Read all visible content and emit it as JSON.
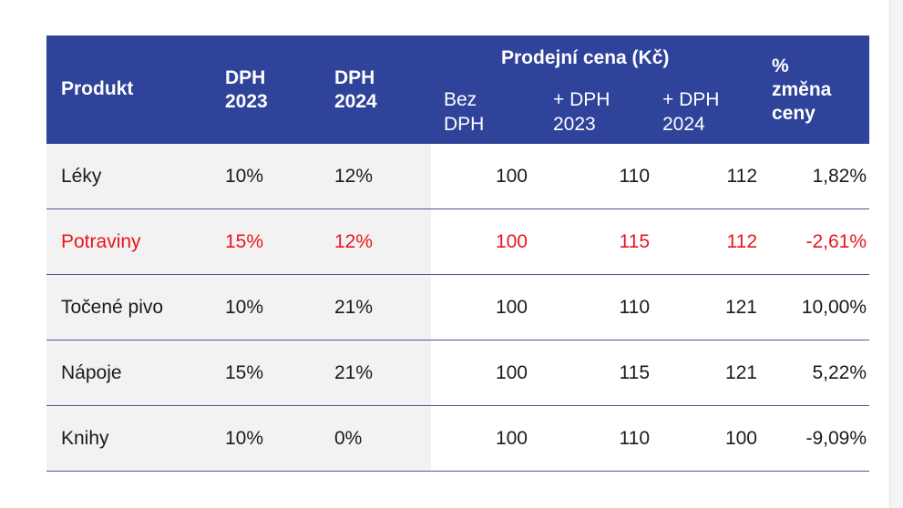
{
  "header": {
    "product": "Produkt",
    "vat2023": [
      "DPH",
      "2023"
    ],
    "vat2024": [
      "DPH",
      "2024"
    ],
    "price_group": "Prodejní cena (Kč)",
    "price_excl": [
      "Bez",
      "DPH"
    ],
    "price_2023": [
      "+ DPH",
      "2023"
    ],
    "price_2024": [
      "+ DPH",
      "2024"
    ],
    "change": [
      "%",
      "změna",
      "ceny"
    ]
  },
  "rows": [
    {
      "product": "Léky",
      "vat2023": "10%",
      "vat2024": "12%",
      "excl": "100",
      "p2023": "110",
      "p2024": "112",
      "change": "1,82%",
      "highlight": false
    },
    {
      "product": "Potraviny",
      "vat2023": "15%",
      "vat2024": "12%",
      "excl": "100",
      "p2023": "115",
      "p2024": "112",
      "change": "-2,61%",
      "highlight": true
    },
    {
      "product": "Točené pivo",
      "vat2023": "10%",
      "vat2024": "21%",
      "excl": "100",
      "p2023": "110",
      "p2024": "121",
      "change": "10,00%",
      "highlight": false
    },
    {
      "product": "Nápoje",
      "vat2023": "15%",
      "vat2024": "21%",
      "excl": "100",
      "p2023": "115",
      "p2024": "121",
      "change": "5,22%",
      "highlight": false
    },
    {
      "product": "Knihy",
      "vat2023": "10%",
      "vat2024": "0%",
      "excl": "100",
      "p2023": "110",
      "p2024": "100",
      "change": "-9,09%",
      "highlight": false
    }
  ],
  "colors": {
    "header_bg": "#2e4399",
    "highlight_text": "#e8161d",
    "shade": "#f2f2f2"
  }
}
